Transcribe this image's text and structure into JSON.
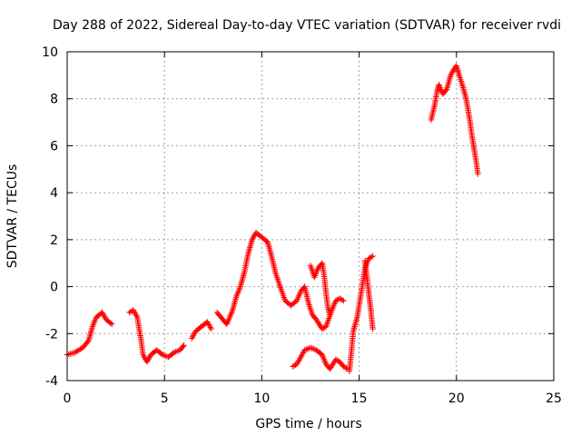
{
  "chart_data": {
    "type": "scatter",
    "title": "Day 288 of 2022, Sidereal Day-to-day VTEC variation (SDTVAR) for receiver rvdi",
    "xlabel": "GPS time / hours",
    "ylabel": "SDTVAR / TECUs",
    "xlim": [
      0,
      25
    ],
    "ylim": [
      -4,
      10
    ],
    "xticks": [
      0,
      5,
      10,
      15,
      20,
      25
    ],
    "yticks": [
      -4,
      -2,
      0,
      2,
      4,
      6,
      8,
      10
    ],
    "grid": true,
    "marker": "plus",
    "series": [
      {
        "name": "SDTVAR",
        "color": "#ff0000",
        "polylines": [
          [
            [
              0.0,
              -2.9
            ],
            [
              0.4,
              -2.8
            ],
            [
              0.8,
              -2.6
            ],
            [
              1.1,
              -2.3
            ],
            [
              1.3,
              -1.7
            ],
            [
              1.5,
              -1.3
            ],
            [
              1.8,
              -1.1
            ],
            [
              2.0,
              -1.4
            ],
            [
              2.3,
              -1.6
            ]
          ],
          [
            [
              3.2,
              -1.1
            ],
            [
              3.4,
              -1.0
            ],
            [
              3.6,
              -1.3
            ],
            [
              3.8,
              -2.3
            ],
            [
              3.9,
              -2.9
            ],
            [
              4.1,
              -3.2
            ],
            [
              4.3,
              -2.9
            ],
            [
              4.6,
              -2.7
            ],
            [
              4.9,
              -2.9
            ],
            [
              5.2,
              -3.0
            ],
            [
              5.5,
              -2.8
            ],
            [
              5.8,
              -2.7
            ],
            [
              6.0,
              -2.5
            ]
          ],
          [
            [
              6.4,
              -2.2
            ],
            [
              6.6,
              -1.9
            ],
            [
              6.9,
              -1.7
            ],
            [
              7.2,
              -1.5
            ],
            [
              7.4,
              -1.8
            ]
          ],
          [
            [
              7.7,
              -1.1
            ],
            [
              8.0,
              -1.4
            ],
            [
              8.2,
              -1.6
            ],
            [
              8.5,
              -1.0
            ],
            [
              8.7,
              -0.4
            ],
            [
              8.9,
              0.0
            ],
            [
              9.1,
              0.6
            ],
            [
              9.3,
              1.4
            ],
            [
              9.5,
              2.0
            ],
            [
              9.7,
              2.3
            ],
            [
              10.0,
              2.1
            ],
            [
              10.3,
              1.9
            ],
            [
              10.5,
              1.3
            ],
            [
              10.7,
              0.6
            ],
            [
              10.9,
              0.1
            ],
            [
              11.2,
              -0.6
            ],
            [
              11.5,
              -0.8
            ],
            [
              11.8,
              -0.6
            ],
            [
              12.0,
              -0.2
            ],
            [
              12.2,
              0.0
            ],
            [
              12.4,
              -0.7
            ],
            [
              12.6,
              -1.2
            ],
            [
              12.8,
              -1.4
            ],
            [
              13.1,
              -1.8
            ],
            [
              13.3,
              -1.7
            ],
            [
              13.6,
              -1.0
            ],
            [
              13.8,
              -0.6
            ],
            [
              14.0,
              -0.5
            ],
            [
              14.2,
              -0.6
            ]
          ],
          [
            [
              12.5,
              0.9
            ],
            [
              12.7,
              0.4
            ],
            [
              12.9,
              0.8
            ],
            [
              13.1,
              1.0
            ],
            [
              13.2,
              0.5
            ],
            [
              13.3,
              -0.3
            ],
            [
              13.4,
              -0.9
            ],
            [
              13.5,
              -1.2
            ]
          ],
          [
            [
              11.6,
              -3.4
            ],
            [
              11.8,
              -3.3
            ],
            [
              12.0,
              -3.0
            ],
            [
              12.2,
              -2.7
            ],
            [
              12.5,
              -2.6
            ],
            [
              12.8,
              -2.7
            ],
            [
              13.1,
              -2.9
            ],
            [
              13.3,
              -3.3
            ],
            [
              13.5,
              -3.5
            ],
            [
              13.8,
              -3.1
            ],
            [
              14.0,
              -3.2
            ],
            [
              14.2,
              -3.4
            ],
            [
              14.4,
              -3.5
            ]
          ],
          [
            [
              14.5,
              -3.6
            ],
            [
              14.6,
              -2.8
            ],
            [
              14.7,
              -1.9
            ],
            [
              14.9,
              -1.3
            ],
            [
              15.1,
              -0.3
            ],
            [
              15.3,
              0.8
            ],
            [
              15.5,
              1.2
            ],
            [
              15.7,
              1.3
            ]
          ],
          [
            [
              15.3,
              1.1
            ],
            [
              15.4,
              0.4
            ],
            [
              15.5,
              -0.3
            ],
            [
              15.6,
              -1.0
            ],
            [
              15.7,
              -1.8
            ]
          ],
          [
            [
              18.7,
              7.1
            ],
            [
              18.9,
              7.8
            ],
            [
              19.0,
              8.3
            ],
            [
              19.1,
              8.6
            ],
            [
              19.3,
              8.2
            ],
            [
              19.5,
              8.4
            ],
            [
              19.7,
              9.0
            ],
            [
              19.9,
              9.3
            ],
            [
              20.0,
              9.4
            ],
            [
              20.1,
              9.1
            ],
            [
              20.3,
              8.6
            ],
            [
              20.5,
              8.0
            ],
            [
              20.6,
              7.5
            ],
            [
              20.7,
              7.0
            ],
            [
              20.8,
              6.4
            ],
            [
              20.9,
              5.9
            ],
            [
              21.0,
              5.4
            ],
            [
              21.1,
              4.8
            ]
          ]
        ]
      }
    ]
  }
}
